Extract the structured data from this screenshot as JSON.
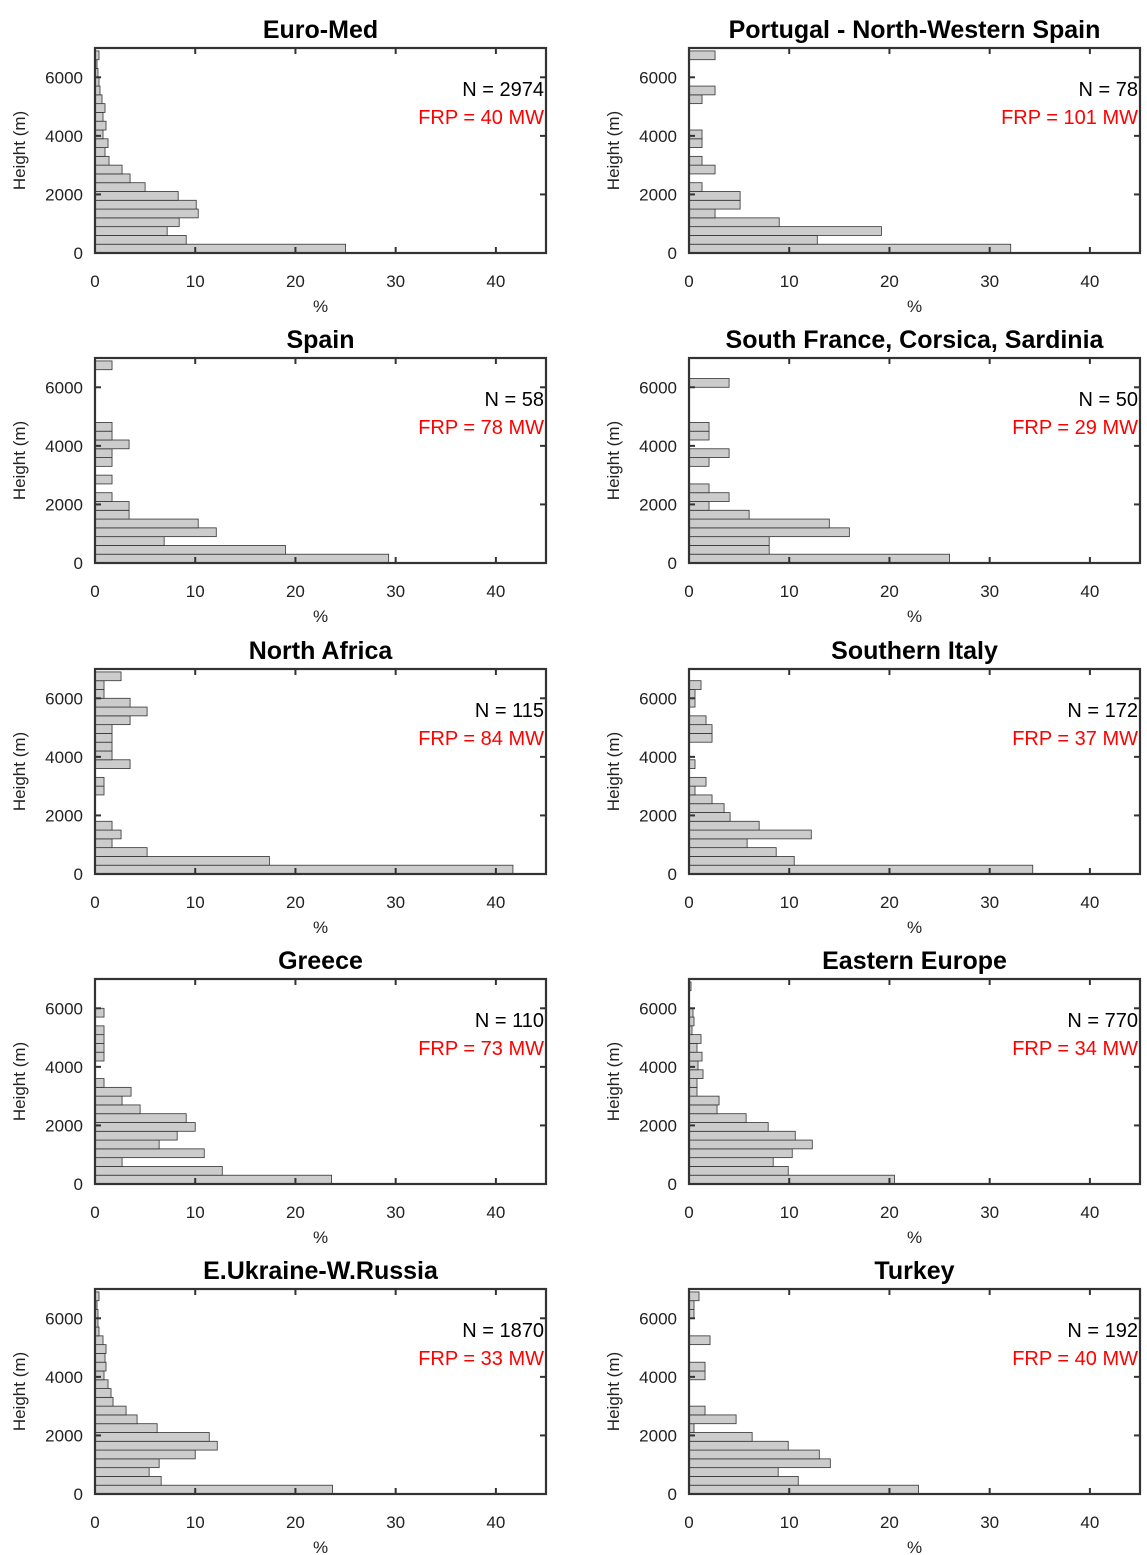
{
  "chart_data": [
    {
      "type": "bar",
      "orientation": "horizontal",
      "title": "Euro-Med",
      "xlabel": "%",
      "ylabel": "Height (m)",
      "xlim": [
        0,
        45
      ],
      "ylim": [
        0,
        7000
      ],
      "xticks": [
        0,
        10,
        20,
        30,
        40
      ],
      "yticks": [
        0,
        2000,
        4000,
        6000
      ],
      "bin_width_m": 300,
      "annotations": {
        "n": "N = 2974",
        "frp": "FRP = 40 MW"
      },
      "bins": [
        {
          "y": 150,
          "x": 25
        },
        {
          "y": 450,
          "x": 9.1
        },
        {
          "y": 750,
          "x": 7.2
        },
        {
          "y": 1050,
          "x": 8.4
        },
        {
          "y": 1350,
          "x": 10.3
        },
        {
          "y": 1650,
          "x": 10.1
        },
        {
          "y": 1950,
          "x": 8.3
        },
        {
          "y": 2250,
          "x": 5
        },
        {
          "y": 2550,
          "x": 3.5
        },
        {
          "y": 2850,
          "x": 2.7
        },
        {
          "y": 3150,
          "x": 1.4
        },
        {
          "y": 3450,
          "x": 1
        },
        {
          "y": 3750,
          "x": 1.3
        },
        {
          "y": 4050,
          "x": 0.8
        },
        {
          "y": 4350,
          "x": 1.1
        },
        {
          "y": 4650,
          "x": 0.8
        },
        {
          "y": 4950,
          "x": 1
        },
        {
          "y": 5250,
          "x": 0.7
        },
        {
          "y": 5550,
          "x": 0.5
        },
        {
          "y": 5850,
          "x": 0.4
        },
        {
          "y": 6150,
          "x": 0.3
        },
        {
          "y": 6450,
          "x": 0.2
        },
        {
          "y": 6750,
          "x": 0.4
        }
      ]
    },
    {
      "type": "bar",
      "orientation": "horizontal",
      "title": "Portugal - North-Western Spain",
      "xlabel": "%",
      "ylabel": "Height (m)",
      "xlim": [
        0,
        45
      ],
      "ylim": [
        0,
        7000
      ],
      "xticks": [
        0,
        10,
        20,
        30,
        40
      ],
      "yticks": [
        0,
        2000,
        4000,
        6000
      ],
      "bin_width_m": 300,
      "annotations": {
        "n": "N = 78",
        "frp": "FRP = 101 MW"
      },
      "bins": [
        {
          "y": 150,
          "x": 32.1
        },
        {
          "y": 450,
          "x": 12.8
        },
        {
          "y": 750,
          "x": 19.2
        },
        {
          "y": 1050,
          "x": 9
        },
        {
          "y": 1350,
          "x": 2.6
        },
        {
          "y": 1650,
          "x": 5.1
        },
        {
          "y": 1950,
          "x": 5.1
        },
        {
          "y": 2250,
          "x": 1.3
        },
        {
          "y": 2850,
          "x": 2.6
        },
        {
          "y": 3150,
          "x": 1.3
        },
        {
          "y": 3750,
          "x": 1.3
        },
        {
          "y": 4050,
          "x": 1.3
        },
        {
          "y": 5250,
          "x": 1.3
        },
        {
          "y": 5550,
          "x": 2.6
        },
        {
          "y": 6750,
          "x": 2.6
        }
      ]
    },
    {
      "type": "bar",
      "orientation": "horizontal",
      "title": "Spain",
      "xlabel": "%",
      "ylabel": "Height (m)",
      "xlim": [
        0,
        45
      ],
      "ylim": [
        0,
        7000
      ],
      "xticks": [
        0,
        10,
        20,
        30,
        40
      ],
      "yticks": [
        0,
        2000,
        4000,
        6000
      ],
      "bin_width_m": 300,
      "annotations": {
        "n": "N = 58",
        "frp": "FRP = 78 MW"
      },
      "bins": [
        {
          "y": 150,
          "x": 29.3
        },
        {
          "y": 450,
          "x": 19
        },
        {
          "y": 750,
          "x": 6.9
        },
        {
          "y": 1050,
          "x": 12.1
        },
        {
          "y": 1350,
          "x": 10.3
        },
        {
          "y": 1650,
          "x": 3.4
        },
        {
          "y": 1950,
          "x": 3.4
        },
        {
          "y": 2250,
          "x": 1.7
        },
        {
          "y": 2850,
          "x": 1.7
        },
        {
          "y": 3450,
          "x": 1.7
        },
        {
          "y": 3750,
          "x": 1.7
        },
        {
          "y": 4050,
          "x": 3.4
        },
        {
          "y": 4350,
          "x": 1.7
        },
        {
          "y": 4650,
          "x": 1.7
        },
        {
          "y": 6750,
          "x": 1.7
        }
      ]
    },
    {
      "type": "bar",
      "orientation": "horizontal",
      "title": "South France, Corsica, Sardinia",
      "xlabel": "%",
      "ylabel": "Height (m)",
      "xlim": [
        0,
        45
      ],
      "ylim": [
        0,
        7000
      ],
      "xticks": [
        0,
        10,
        20,
        30,
        40
      ],
      "yticks": [
        0,
        2000,
        4000,
        6000
      ],
      "bin_width_m": 300,
      "annotations": {
        "n": "N = 50",
        "frp": "FRP = 29 MW"
      },
      "bins": [
        {
          "y": 150,
          "x": 26
        },
        {
          "y": 450,
          "x": 8
        },
        {
          "y": 750,
          "x": 8
        },
        {
          "y": 1050,
          "x": 16
        },
        {
          "y": 1350,
          "x": 14
        },
        {
          "y": 1650,
          "x": 6
        },
        {
          "y": 1950,
          "x": 2
        },
        {
          "y": 2250,
          "x": 4
        },
        {
          "y": 2550,
          "x": 2
        },
        {
          "y": 3450,
          "x": 2
        },
        {
          "y": 3750,
          "x": 4
        },
        {
          "y": 4350,
          "x": 2
        },
        {
          "y": 4650,
          "x": 2
        },
        {
          "y": 6150,
          "x": 4
        }
      ]
    },
    {
      "type": "bar",
      "orientation": "horizontal",
      "title": "North Africa",
      "xlabel": "%",
      "ylabel": "Height (m)",
      "xlim": [
        0,
        45
      ],
      "ylim": [
        0,
        7000
      ],
      "xticks": [
        0,
        10,
        20,
        30,
        40
      ],
      "yticks": [
        0,
        2000,
        4000,
        6000
      ],
      "bin_width_m": 300,
      "annotations": {
        "n": "N = 115",
        "frp": "FRP = 84 MW"
      },
      "bins": [
        {
          "y": 150,
          "x": 41.7
        },
        {
          "y": 450,
          "x": 17.4
        },
        {
          "y": 750,
          "x": 5.2
        },
        {
          "y": 1050,
          "x": 1.7
        },
        {
          "y": 1350,
          "x": 2.6
        },
        {
          "y": 1650,
          "x": 1.7
        },
        {
          "y": 2850,
          "x": 0.9
        },
        {
          "y": 3150,
          "x": 0.9
        },
        {
          "y": 3750,
          "x": 3.5
        },
        {
          "y": 4050,
          "x": 1.7
        },
        {
          "y": 4350,
          "x": 1.7
        },
        {
          "y": 4650,
          "x": 1.7
        },
        {
          "y": 4950,
          "x": 1.7
        },
        {
          "y": 5250,
          "x": 3.5
        },
        {
          "y": 5550,
          "x": 5.2
        },
        {
          "y": 5850,
          "x": 3.5
        },
        {
          "y": 6150,
          "x": 0.9
        },
        {
          "y": 6450,
          "x": 0.9
        },
        {
          "y": 6750,
          "x": 2.6
        }
      ]
    },
    {
      "type": "bar",
      "orientation": "horizontal",
      "title": "Southern Italy",
      "xlabel": "%",
      "ylabel": "Height (m)",
      "xlim": [
        0,
        45
      ],
      "ylim": [
        0,
        7000
      ],
      "xticks": [
        0,
        10,
        20,
        30,
        40
      ],
      "yticks": [
        0,
        2000,
        4000,
        6000
      ],
      "bin_width_m": 300,
      "annotations": {
        "n": "N = 172",
        "frp": "FRP = 37 MW"
      },
      "bins": [
        {
          "y": 150,
          "x": 34.3
        },
        {
          "y": 450,
          "x": 10.5
        },
        {
          "y": 750,
          "x": 8.7
        },
        {
          "y": 1050,
          "x": 5.8
        },
        {
          "y": 1350,
          "x": 12.2
        },
        {
          "y": 1650,
          "x": 7
        },
        {
          "y": 1950,
          "x": 4.1
        },
        {
          "y": 2250,
          "x": 3.5
        },
        {
          "y": 2550,
          "x": 2.3
        },
        {
          "y": 2850,
          "x": 0.6
        },
        {
          "y": 3150,
          "x": 1.7
        },
        {
          "y": 3750,
          "x": 0.6
        },
        {
          "y": 4650,
          "x": 2.3
        },
        {
          "y": 4950,
          "x": 2.3
        },
        {
          "y": 5250,
          "x": 1.7
        },
        {
          "y": 5850,
          "x": 0.6
        },
        {
          "y": 6150,
          "x": 0.6
        },
        {
          "y": 6450,
          "x": 1.2
        }
      ]
    },
    {
      "type": "bar",
      "orientation": "horizontal",
      "title": "Greece",
      "xlabel": "%",
      "ylabel": "Height (m)",
      "xlim": [
        0,
        45
      ],
      "ylim": [
        0,
        7000
      ],
      "xticks": [
        0,
        10,
        20,
        30,
        40
      ],
      "yticks": [
        0,
        2000,
        4000,
        6000
      ],
      "bin_width_m": 300,
      "annotations": {
        "n": "N = 110",
        "frp": "FRP = 73 MW"
      },
      "bins": [
        {
          "y": 150,
          "x": 23.6
        },
        {
          "y": 450,
          "x": 12.7
        },
        {
          "y": 750,
          "x": 2.7
        },
        {
          "y": 1050,
          "x": 10.9
        },
        {
          "y": 1350,
          "x": 6.4
        },
        {
          "y": 1650,
          "x": 8.2
        },
        {
          "y": 1950,
          "x": 10
        },
        {
          "y": 2250,
          "x": 9.1
        },
        {
          "y": 2550,
          "x": 4.5
        },
        {
          "y": 2850,
          "x": 2.7
        },
        {
          "y": 3150,
          "x": 3.6
        },
        {
          "y": 3450,
          "x": 0.9
        },
        {
          "y": 4350,
          "x": 0.9
        },
        {
          "y": 4650,
          "x": 0.9
        },
        {
          "y": 4950,
          "x": 0.9
        },
        {
          "y": 5250,
          "x": 0.9
        },
        {
          "y": 5850,
          "x": 0.9
        }
      ]
    },
    {
      "type": "bar",
      "orientation": "horizontal",
      "title": "Eastern Europe",
      "xlabel": "%",
      "ylabel": "Height (m)",
      "xlim": [
        0,
        45
      ],
      "ylim": [
        0,
        7000
      ],
      "xticks": [
        0,
        10,
        20,
        30,
        40
      ],
      "yticks": [
        0,
        2000,
        4000,
        6000
      ],
      "bin_width_m": 300,
      "annotations": {
        "n": "N = 770",
        "frp": "FRP = 34 MW"
      },
      "bins": [
        {
          "y": 150,
          "x": 20.5
        },
        {
          "y": 450,
          "x": 9.9
        },
        {
          "y": 750,
          "x": 8.4
        },
        {
          "y": 1050,
          "x": 10.3
        },
        {
          "y": 1350,
          "x": 12.3
        },
        {
          "y": 1650,
          "x": 10.6
        },
        {
          "y": 1950,
          "x": 7.9
        },
        {
          "y": 2250,
          "x": 5.7
        },
        {
          "y": 2550,
          "x": 2.8
        },
        {
          "y": 2850,
          "x": 3
        },
        {
          "y": 3150,
          "x": 0.8
        },
        {
          "y": 3450,
          "x": 0.8
        },
        {
          "y": 3750,
          "x": 1.4
        },
        {
          "y": 4050,
          "x": 0.9
        },
        {
          "y": 4350,
          "x": 1.3
        },
        {
          "y": 4650,
          "x": 0.8
        },
        {
          "y": 4950,
          "x": 1.2
        },
        {
          "y": 5250,
          "x": 0.3
        },
        {
          "y": 5550,
          "x": 0.5
        },
        {
          "y": 5850,
          "x": 0.4
        },
        {
          "y": 6750,
          "x": 0.2
        }
      ]
    },
    {
      "type": "bar",
      "orientation": "horizontal",
      "title": "E.Ukraine-W.Russia",
      "xlabel": "%",
      "ylabel": "Height (m)",
      "xlim": [
        0,
        45
      ],
      "ylim": [
        0,
        7000
      ],
      "xticks": [
        0,
        10,
        20,
        30,
        40
      ],
      "yticks": [
        0,
        2000,
        4000,
        6000
      ],
      "bin_width_m": 300,
      "annotations": {
        "n": "N = 1870",
        "frp": "FRP = 33 MW"
      },
      "bins": [
        {
          "y": 150,
          "x": 23.7
        },
        {
          "y": 450,
          "x": 6.6
        },
        {
          "y": 750,
          "x": 5.4
        },
        {
          "y": 1050,
          "x": 6.4
        },
        {
          "y": 1350,
          "x": 10
        },
        {
          "y": 1650,
          "x": 12.2
        },
        {
          "y": 1950,
          "x": 11.4
        },
        {
          "y": 2250,
          "x": 6.2
        },
        {
          "y": 2550,
          "x": 4.2
        },
        {
          "y": 2850,
          "x": 3.1
        },
        {
          "y": 3150,
          "x": 1.8
        },
        {
          "y": 3450,
          "x": 1.6
        },
        {
          "y": 3750,
          "x": 1.3
        },
        {
          "y": 4050,
          "x": 0.9
        },
        {
          "y": 4350,
          "x": 1.1
        },
        {
          "y": 4650,
          "x": 1
        },
        {
          "y": 4950,
          "x": 1.1
        },
        {
          "y": 5250,
          "x": 0.8
        },
        {
          "y": 5550,
          "x": 0.4
        },
        {
          "y": 5850,
          "x": 0.3
        },
        {
          "y": 6150,
          "x": 0.3
        },
        {
          "y": 6450,
          "x": 0.2
        },
        {
          "y": 6750,
          "x": 0.4
        }
      ]
    },
    {
      "type": "bar",
      "orientation": "horizontal",
      "title": "Turkey",
      "xlabel": "%",
      "ylabel": "Height (m)",
      "xlim": [
        0,
        45
      ],
      "ylim": [
        0,
        7000
      ],
      "xticks": [
        0,
        10,
        20,
        30,
        40
      ],
      "yticks": [
        0,
        2000,
        4000,
        6000
      ],
      "bin_width_m": 300,
      "annotations": {
        "n": "N = 192",
        "frp": "FRP = 40 MW"
      },
      "bins": [
        {
          "y": 150,
          "x": 22.9
        },
        {
          "y": 450,
          "x": 10.9
        },
        {
          "y": 750,
          "x": 8.9
        },
        {
          "y": 1050,
          "x": 14.1
        },
        {
          "y": 1350,
          "x": 13
        },
        {
          "y": 1650,
          "x": 9.9
        },
        {
          "y": 1950,
          "x": 6.3
        },
        {
          "y": 2250,
          "x": 0.5
        },
        {
          "y": 2550,
          "x": 4.7
        },
        {
          "y": 2850,
          "x": 1.6
        },
        {
          "y": 4050,
          "x": 1.6
        },
        {
          "y": 4350,
          "x": 1.6
        },
        {
          "y": 5250,
          "x": 2.1
        },
        {
          "y": 6150,
          "x": 0.5
        },
        {
          "y": 6450,
          "x": 0.5
        },
        {
          "y": 6750,
          "x": 1
        }
      ]
    }
  ]
}
